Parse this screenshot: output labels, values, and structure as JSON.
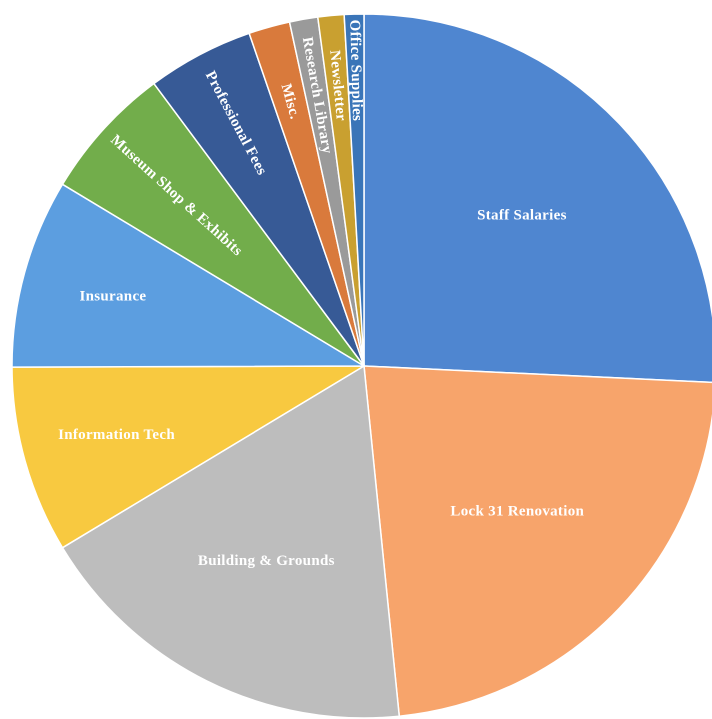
{
  "chart_data": {
    "type": "pie",
    "title": "",
    "start_angle_deg": 0,
    "direction": "clockwise",
    "legend": "none",
    "slices": [
      {
        "label": "Staff Salaries",
        "value": 25.8,
        "color": "#4f86d0"
      },
      {
        "label": "Lock 31 Renovation",
        "value": 22.7,
        "color": "#f7a46b"
      },
      {
        "label": "Building & Grounds",
        "value": 18.0,
        "color": "#bdbdbd"
      },
      {
        "label": "Information Tech",
        "value": 8.6,
        "color": "#f8c940"
      },
      {
        "label": "Insurance",
        "value": 8.7,
        "color": "#5c9ee0"
      },
      {
        "label": "Museum Shop & Exhibits",
        "value": 6.2,
        "color": "#72ad4b"
      },
      {
        "label": "Professional Fees",
        "value": 4.9,
        "color": "#375a96"
      },
      {
        "label": "Misc.",
        "value": 1.9,
        "color": "#d97a3c"
      },
      {
        "label": "Research Library",
        "value": 1.3,
        "color": "#9a9a9a"
      },
      {
        "label": "Newsletter",
        "value": 1.2,
        "color": "#c9a030"
      },
      {
        "label": "Office Supplies",
        "value": 0.9,
        "color": "#3a75b8"
      }
    ]
  }
}
